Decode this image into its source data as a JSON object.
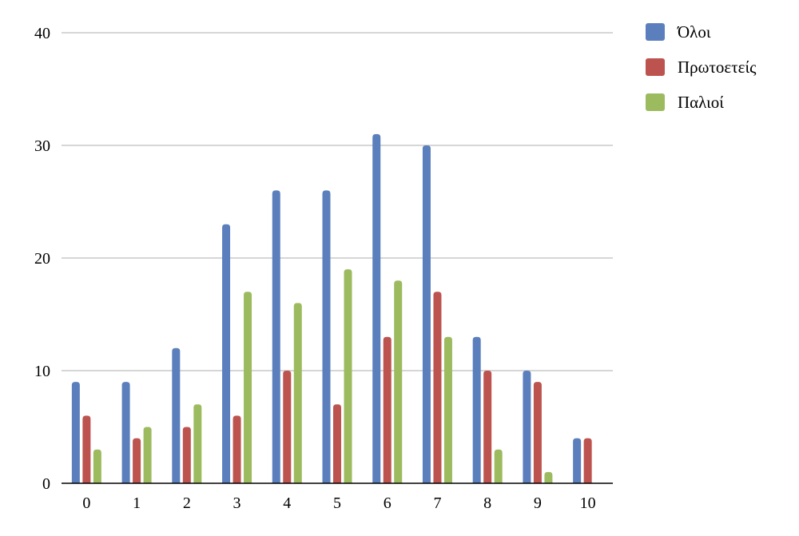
{
  "chart_data": {
    "type": "bar",
    "categories": [
      "0",
      "1",
      "2",
      "3",
      "4",
      "5",
      "6",
      "7",
      "8",
      "9",
      "10"
    ],
    "series": [
      {
        "name": "Όλοι",
        "color": "#5b7fbc",
        "values": [
          9,
          9,
          12,
          23,
          26,
          26,
          31,
          30,
          13,
          10,
          4
        ]
      },
      {
        "name": "Πρωτοετείς",
        "color": "#bc534f",
        "values": [
          6,
          4,
          5,
          6,
          10,
          7,
          13,
          17,
          10,
          9,
          4
        ]
      },
      {
        "name": "Παλιοί",
        "color": "#9cbb5f",
        "values": [
          3,
          5,
          7,
          17,
          16,
          19,
          18,
          13,
          3,
          1,
          0
        ]
      }
    ],
    "y_ticks": [
      0,
      10,
      20,
      30,
      40
    ],
    "ylim": [
      0,
      40
    ],
    "grid": true,
    "legend_position": "top-right"
  }
}
